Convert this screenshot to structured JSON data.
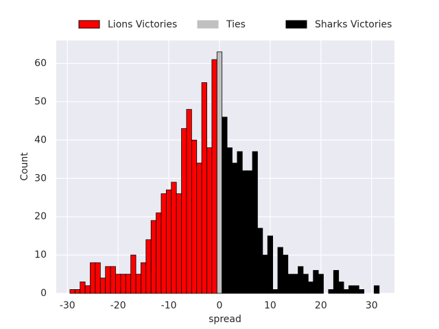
{
  "chart_data": {
    "type": "histogram",
    "xlabel": "spread",
    "ylabel": "Count",
    "xlim": [
      -32.2,
      34.5
    ],
    "ylim": [
      0,
      66
    ],
    "xticks": [
      -30,
      -20,
      -10,
      0,
      10,
      20,
      30
    ],
    "yticks": [
      0,
      10,
      20,
      30,
      40,
      50,
      60
    ],
    "grid": true,
    "legend": "top",
    "series": [
      {
        "name": "Lions Victories",
        "color": "#ff0000",
        "edgecolor": "#000000",
        "bins": [
          -29.5,
          -28.5,
          -27.5,
          -26.5,
          -25.5,
          -24.5,
          -23.5,
          -22.5,
          -21.5,
          -20.5,
          -19.5,
          -18.5,
          -17.5,
          -16.5,
          -15.5,
          -14.5,
          -13.5,
          -12.5,
          -11.5,
          -10.5,
          -9.5,
          -8.5,
          -7.5,
          -6.5,
          -5.5,
          -4.5,
          -3.5,
          -2.5,
          -1.5,
          -0.5
        ],
        "values": [
          1,
          1,
          3,
          2,
          8,
          8,
          4,
          7,
          7,
          5,
          5,
          5,
          10,
          5,
          8,
          14,
          19,
          21,
          26,
          27,
          29,
          26,
          43,
          48,
          40,
          34,
          55,
          38,
          61
        ]
      },
      {
        "name": "Ties",
        "color": "#c0c0c0",
        "edgecolor": "#000000",
        "bins": [
          -0.5,
          0.5
        ],
        "values": [
          63
        ]
      },
      {
        "name": "Sharks Victories",
        "color": "#000000",
        "edgecolor": "#000000",
        "bins": [
          0.5,
          1.5,
          2.5,
          3.5,
          4.5,
          5.5,
          6.5,
          7.5,
          8.5,
          9.5,
          10.5,
          11.5,
          12.5,
          13.5,
          14.5,
          15.5,
          16.5,
          17.5,
          18.5,
          19.5,
          20.5,
          21.5,
          22.5,
          23.5,
          24.5,
          25.5,
          26.5,
          27.5,
          28.5,
          29.5,
          30.5,
          31.5
        ],
        "values": [
          46,
          38,
          34,
          37,
          32,
          32,
          37,
          17,
          10,
          15,
          1,
          12,
          10,
          5,
          5,
          7,
          5,
          3,
          6,
          5,
          0,
          1,
          6,
          3,
          1,
          2,
          2,
          1,
          0,
          0,
          2
        ]
      }
    ]
  }
}
